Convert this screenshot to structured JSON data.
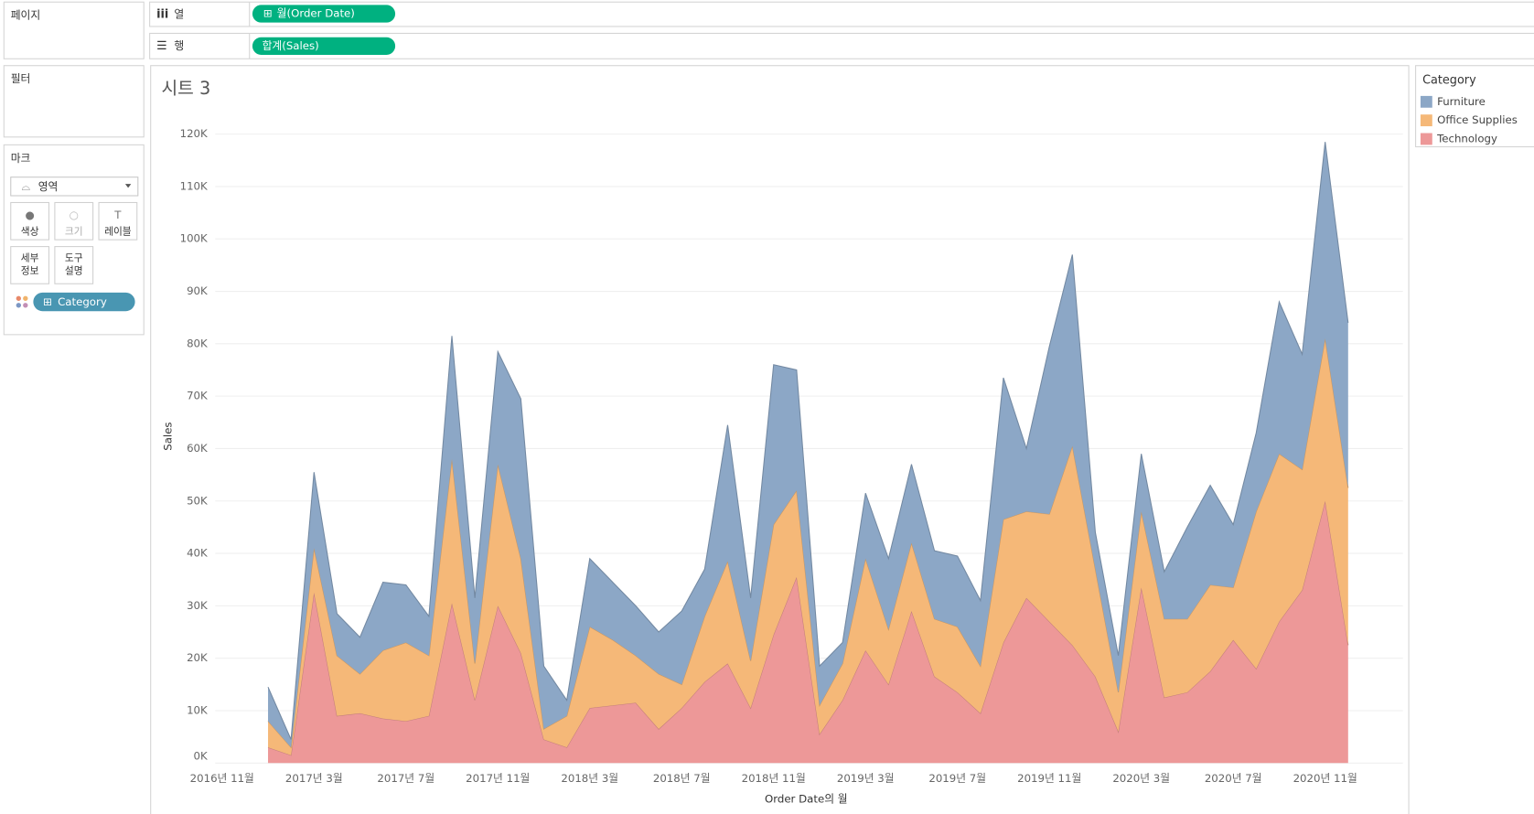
{
  "shelves": {
    "pages": "페이지",
    "columns_label": "열",
    "columns_pill": "월(Order Date)",
    "rows_label": "행",
    "rows_pill": "합계(Sales)",
    "filters": "필터"
  },
  "marks": {
    "title": "마크",
    "mark_type": "영역",
    "buttons": [
      [
        "색상"
      ],
      [
        "크기"
      ],
      [
        "레이블"
      ],
      [
        "세부",
        "정보"
      ],
      [
        "도구",
        "설명"
      ]
    ],
    "pill": "Category"
  },
  "legend": {
    "title": "Category"
  },
  "chart_data": {
    "type": "area",
    "stacked": true,
    "title": "시트 3",
    "x_label": "Order Date의 월",
    "y_label": "Sales",
    "categories": [
      "2016년 11월",
      null,
      null,
      null,
      "2017년 3월",
      null,
      null,
      null,
      "2017년 7월",
      null,
      null,
      null,
      "2017년 11월",
      null,
      null,
      null,
      "2018년 3월",
      null,
      null,
      null,
      "2018년 7월",
      null,
      null,
      null,
      "2018년 11월",
      null,
      null,
      null,
      "2019년 3월",
      null,
      null,
      null,
      "2019년 7월",
      null,
      null,
      null,
      "2019년 11월",
      null,
      null,
      null,
      "2020년 3월",
      null,
      null,
      null,
      "2020년 7월",
      null,
      null,
      null,
      "2020년 11월",
      null
    ],
    "series": [
      {
        "name": "Furniture",
        "color": "#8ca7c6",
        "values": [
          null,
          null,
          6500,
          1500,
          14500,
          8000,
          7000,
          13000,
          11000,
          7500,
          23500,
          12500,
          21500,
          30500,
          12000,
          3000,
          13000,
          11000,
          9500,
          8000,
          14000,
          9000,
          26000,
          12000,
          30500,
          23000,
          7500,
          4000,
          12500,
          13500,
          15000,
          13000,
          13500,
          12500,
          27000,
          12000,
          32000,
          36500,
          7000,
          7000,
          11000,
          9000,
          17500,
          19000,
          12000,
          15000,
          29000,
          22000,
          37500,
          31500
        ]
      },
      {
        "name": "Office Supplies",
        "color": "#f5b878",
        "values": [
          null,
          null,
          5000,
          1500,
          8500,
          11500,
          7500,
          13000,
          15000,
          11500,
          27500,
          7000,
          27000,
          18000,
          2000,
          6000,
          15500,
          12500,
          9000,
          10500,
          4500,
          12500,
          19500,
          9000,
          21000,
          16500,
          5500,
          7000,
          17500,
          10500,
          13000,
          11000,
          12500,
          9000,
          23500,
          16500,
          20500,
          38000,
          20500,
          7500,
          14500,
          15000,
          14000,
          16500,
          10000,
          30000,
          32000,
          23000,
          31000,
          30000
        ]
      },
      {
        "name": "Technology",
        "color": "#ed9898",
        "values": [
          null,
          null,
          3000,
          1500,
          32500,
          9000,
          9500,
          8500,
          8000,
          9000,
          30500,
          12000,
          30000,
          21000,
          4500,
          3000,
          10500,
          11000,
          11500,
          6500,
          10500,
          15500,
          19000,
          10500,
          24500,
          35500,
          5500,
          12000,
          21500,
          15000,
          29000,
          16500,
          13500,
          9500,
          23000,
          31500,
          27000,
          22500,
          16500,
          6000,
          33500,
          12500,
          13500,
          17500,
          23500,
          18000,
          27000,
          33000,
          50000,
          22500
        ]
      }
    ],
    "ylim": [
      0,
      120000
    ],
    "yticks": [
      {
        "value": 0,
        "label": "0K"
      },
      {
        "value": 10000,
        "label": "10K"
      },
      {
        "value": 20000,
        "label": "20K"
      },
      {
        "value": 30000,
        "label": "30K"
      },
      {
        "value": 40000,
        "label": "40K"
      },
      {
        "value": 50000,
        "label": "50K"
      },
      {
        "value": 60000,
        "label": "60K"
      },
      {
        "value": 70000,
        "label": "70K"
      },
      {
        "value": 80000,
        "label": "80K"
      },
      {
        "value": 90000,
        "label": "90K"
      },
      {
        "value": 100000,
        "label": "100K"
      },
      {
        "value": 110000,
        "label": "110K"
      },
      {
        "value": 120000,
        "label": "120K"
      }
    ],
    "grid": true
  }
}
